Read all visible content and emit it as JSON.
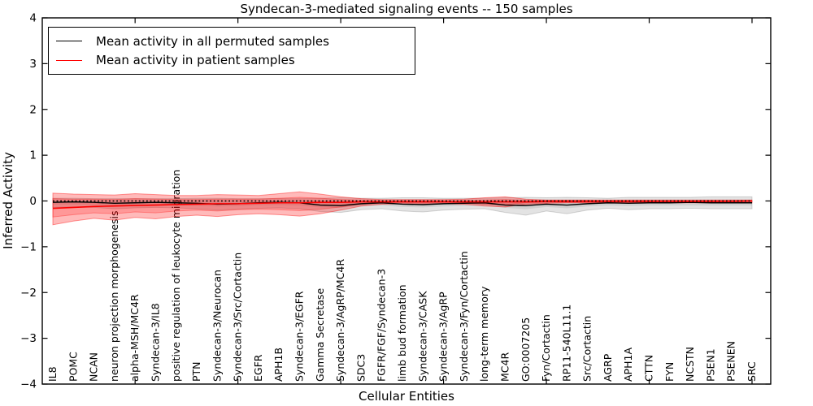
{
  "chart_data": {
    "type": "line",
    "title": "Syndecan-3-mediated signaling events -- 150 samples",
    "xlabel": "Cellular Entities",
    "ylabel": "Inferred Activity",
    "ylim": [
      -4,
      4
    ],
    "ytick_values": [
      4,
      3,
      2,
      1,
      0,
      -1,
      -2,
      -3,
      -4
    ],
    "ytick_labels": [
      "4",
      "3",
      "2",
      "1",
      "0",
      "−1",
      "−2",
      "−3",
      "−4"
    ],
    "grid": false,
    "legend_position": "upper left",
    "n_samples_label": "150 samples",
    "categories": [
      "IL8",
      "POMC",
      "NCAN",
      "neuron projection morphogenesis",
      "alpha-MSH/MC4R",
      "Syndecan-3/IL8",
      "positive regulation of leukocyte migration",
      "PTN",
      "Syndecan-3/Neurocan",
      "Syndecan-3/Src/Cortactin",
      "EGFR",
      "APH1B",
      "Syndecan-3/EGFR",
      "Gamma Secretase",
      "Syndecan-3/AgRP/MC4R",
      "SDC3",
      "FGFR/FGF/Syndecan-3",
      "limb bud formation",
      "Syndecan-3/CASK",
      "Syndecan-3/AgRP",
      "Syndecan-3/Fyn/Cortactin",
      "long-term memory",
      "MC4R",
      "GO:0007205",
      "Fyn/Cortactin",
      "RP11-540L11.1",
      "Src/Cortactin",
      "AGRP",
      "APH1A",
      "CTTN",
      "FYN",
      "NCSTN",
      "PSEN1",
      "PSENEN",
      "SRC"
    ],
    "series": [
      {
        "name": "Mean activity in all permuted samples",
        "color": "#000000",
        "line_style": "solid",
        "values": [
          -0.03,
          -0.02,
          -0.03,
          -0.05,
          -0.04,
          -0.03,
          -0.04,
          -0.05,
          -0.07,
          -0.06,
          -0.04,
          -0.03,
          -0.04,
          -0.09,
          -0.1,
          -0.06,
          -0.04,
          -0.07,
          -0.08,
          -0.06,
          -0.05,
          -0.04,
          -0.09,
          -0.1,
          -0.07,
          -0.09,
          -0.06,
          -0.04,
          -0.05,
          -0.04,
          -0.04,
          -0.03,
          -0.04,
          -0.04,
          -0.04
        ],
        "band": {
          "fill": "rgba(0,0,0,0.11)",
          "inner_fill": "rgba(0,0,0,0.08)",
          "outer_top": [
            0.06,
            0.06,
            0.05,
            0.05,
            0.05,
            0.05,
            0.05,
            0.06,
            0.06,
            0.05,
            0.05,
            0.05,
            0.05,
            0.06,
            0.07,
            0.06,
            0.06,
            0.07,
            0.07,
            0.06,
            0.06,
            0.06,
            0.07,
            0.08,
            0.07,
            0.08,
            0.07,
            0.06,
            0.08,
            0.08,
            0.08,
            0.08,
            0.09,
            0.09,
            0.09
          ],
          "outer_bottom": [
            -0.14,
            -0.13,
            -0.14,
            -0.17,
            -0.15,
            -0.14,
            -0.15,
            -0.17,
            -0.2,
            -0.18,
            -0.16,
            -0.15,
            -0.17,
            -0.23,
            -0.25,
            -0.19,
            -0.17,
            -0.22,
            -0.24,
            -0.2,
            -0.18,
            -0.17,
            -0.25,
            -0.31,
            -0.22,
            -0.28,
            -0.2,
            -0.16,
            -0.19,
            -0.17,
            -0.17,
            -0.16,
            -0.17,
            -0.17,
            -0.17
          ],
          "inner_top": [
            0.02,
            0.02,
            0.02,
            0.02,
            0.02,
            0.02,
            0.02,
            0.02,
            0.02,
            0.02,
            0.02,
            0.02,
            0.02,
            0.02,
            0.03,
            0.02,
            0.02,
            0.03,
            0.03,
            0.02,
            0.02,
            0.02,
            0.03,
            0.03,
            0.03,
            0.03,
            0.03,
            0.02,
            0.03,
            0.03,
            0.03,
            0.03,
            0.03,
            0.03,
            0.03
          ],
          "inner_bottom": [
            -0.08,
            -0.08,
            -0.08,
            -0.1,
            -0.09,
            -0.08,
            -0.09,
            -0.1,
            -0.12,
            -0.11,
            -0.09,
            -0.09,
            -0.1,
            -0.14,
            -0.15,
            -0.11,
            -0.1,
            -0.13,
            -0.14,
            -0.12,
            -0.11,
            -0.1,
            -0.15,
            -0.18,
            -0.13,
            -0.16,
            -0.12,
            -0.1,
            -0.11,
            -0.1,
            -0.1,
            -0.1,
            -0.1,
            -0.1,
            -0.1
          ]
        }
      },
      {
        "name": "Mean activity in patient samples",
        "color": "#ff0000",
        "line_style": "solid",
        "values": [
          -0.16,
          -0.14,
          -0.12,
          -0.11,
          -0.1,
          -0.09,
          -0.08,
          -0.07,
          -0.06,
          -0.06,
          -0.05,
          -0.04,
          -0.04,
          -0.03,
          -0.03,
          -0.02,
          -0.02,
          -0.02,
          -0.02,
          -0.02,
          -0.02,
          -0.02,
          -0.02,
          -0.02,
          -0.01,
          -0.01,
          -0.01,
          -0.01,
          -0.01,
          -0.01,
          -0.01,
          -0.01,
          -0.01,
          -0.01,
          0.0
        ],
        "band": {
          "fill": "rgba(255,0,0,0.27)",
          "inner_fill": "rgba(255,0,0,0.18)",
          "outer_top": [
            0.17,
            0.15,
            0.14,
            0.13,
            0.16,
            0.14,
            0.12,
            0.12,
            0.14,
            0.13,
            0.12,
            0.16,
            0.2,
            0.15,
            0.09,
            0.05,
            0.03,
            0.03,
            0.03,
            0.03,
            0.04,
            0.07,
            0.09,
            0.04,
            0.02,
            0.02,
            0.02,
            0.02,
            0.02,
            0.02,
            0.02,
            0.02,
            0.02,
            0.02,
            0.02
          ],
          "outer_bottom": [
            -0.52,
            -0.44,
            -0.38,
            -0.42,
            -0.36,
            -0.39,
            -0.34,
            -0.31,
            -0.34,
            -0.3,
            -0.28,
            -0.3,
            -0.33,
            -0.28,
            -0.2,
            -0.11,
            -0.07,
            -0.06,
            -0.06,
            -0.06,
            -0.07,
            -0.11,
            -0.13,
            -0.07,
            -0.05,
            -0.04,
            -0.04,
            -0.04,
            -0.04,
            -0.04,
            -0.04,
            -0.04,
            -0.04,
            -0.04,
            -0.04
          ],
          "inner_top": [
            0.05,
            0.04,
            0.04,
            0.03,
            0.05,
            0.04,
            0.03,
            0.03,
            0.04,
            0.04,
            0.04,
            0.06,
            0.08,
            0.06,
            0.03,
            0.02,
            0.01,
            0.01,
            0.01,
            0.01,
            0.01,
            0.02,
            0.03,
            0.01,
            0.01,
            0.01,
            0.01,
            0.01,
            0.01,
            0.01,
            0.01,
            0.01,
            0.01,
            0.01,
            0.01
          ],
          "inner_bottom": [
            -0.35,
            -0.3,
            -0.26,
            -0.28,
            -0.24,
            -0.26,
            -0.22,
            -0.2,
            -0.22,
            -0.19,
            -0.18,
            -0.19,
            -0.21,
            -0.18,
            -0.13,
            -0.07,
            -0.04,
            -0.03,
            -0.03,
            -0.03,
            -0.04,
            -0.07,
            -0.08,
            -0.04,
            -0.03,
            -0.03,
            -0.03,
            -0.03,
            -0.03,
            -0.03,
            -0.03,
            -0.03,
            -0.03,
            -0.03,
            -0.03
          ]
        }
      }
    ],
    "baseline": {
      "name": "zero-reference-line",
      "value": 0,
      "line_style": "dotted",
      "color": "#000000"
    },
    "top_tick_indices": [
      4,
      9,
      14,
      19,
      24,
      29,
      34
    ]
  }
}
